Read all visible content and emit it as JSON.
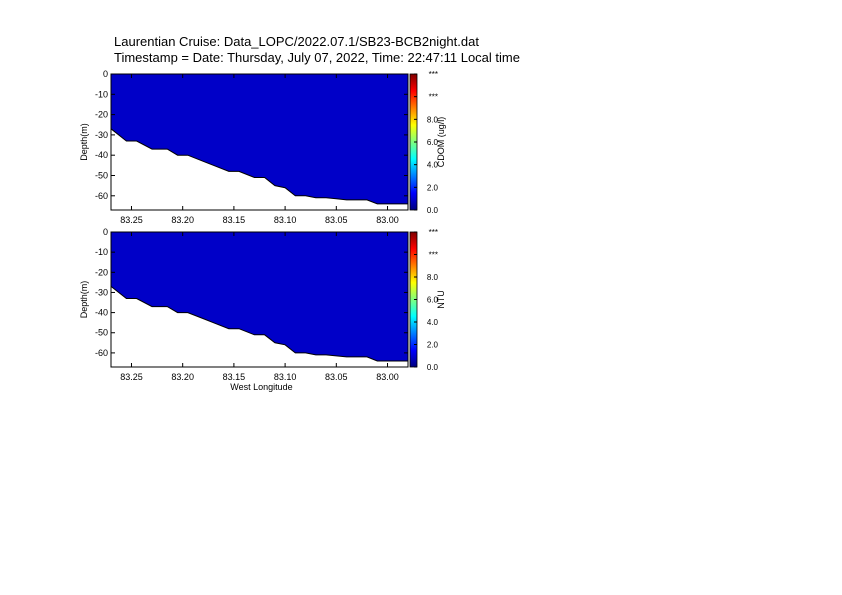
{
  "title_line1": "Laurentian Cruise: Data_LOPC/2022.07.1/SB23-BCB2night.dat",
  "title_line2": "Timestamp = Date: Thursday, July 07, 2022, Time: 22:47:11 Local time",
  "colors": {
    "fill": "#0000c8",
    "axis": "#000000"
  },
  "colorbar_colors": [
    "#00007f",
    "#0000ff",
    "#007fff",
    "#00ffff",
    "#7fff7f",
    "#ffff00",
    "#ff7f00",
    "#ff0000",
    "#7f0000"
  ],
  "chart_data": [
    {
      "type": "heatmap",
      "xlabel": "",
      "ylabel": "Depth(m)",
      "xlim": [
        83.27,
        82.98
      ],
      "ylim": [
        -67,
        0
      ],
      "x_ticks": [
        83.25,
        83.2,
        83.15,
        83.1,
        83.05,
        83.0
      ],
      "x_tick_labels": [
        "83.25",
        "83.20",
        "83.15",
        "83.10",
        "83.05",
        "83.00"
      ],
      "y_ticks": [
        0,
        -10,
        -20,
        -30,
        -40,
        -50,
        -60
      ],
      "y_tick_labels": [
        "0",
        "-10",
        "-20",
        "-30",
        "-40",
        "-50",
        "-60"
      ],
      "colorbar_label": "CDOM (ug/l)",
      "colorbar_ticks": [
        "0.0",
        "2.0",
        "4.0",
        "6.0",
        "8.0",
        "***",
        "***"
      ],
      "bottom_profile": {
        "lon": [
          83.27,
          83.255,
          83.245,
          83.23,
          83.215,
          83.205,
          83.195,
          83.18,
          83.17,
          83.155,
          83.145,
          83.13,
          83.12,
          83.11,
          83.1,
          83.09,
          83.08,
          83.07,
          83.06,
          83.05,
          83.04,
          83.02,
          83.01,
          83.0,
          82.98
        ],
        "depth": [
          -27,
          -33,
          -33,
          -37,
          -37,
          -40,
          -40,
          -43,
          -45,
          -48,
          -48,
          -51,
          -51,
          -55,
          -56,
          -60,
          -60,
          -61,
          -61,
          -61.5,
          -62,
          -62,
          -64,
          -64,
          -64
        ]
      }
    },
    {
      "type": "heatmap",
      "xlabel": "West Longitude",
      "ylabel": "Depth(m)",
      "xlim": [
        83.27,
        82.98
      ],
      "ylim": [
        -67,
        0
      ],
      "x_ticks": [
        83.25,
        83.2,
        83.15,
        83.1,
        83.05,
        83.0
      ],
      "x_tick_labels": [
        "83.25",
        "83.20",
        "83.15",
        "83.10",
        "83.05",
        "83.00"
      ],
      "y_ticks": [
        0,
        -10,
        -20,
        -30,
        -40,
        -50,
        -60
      ],
      "y_tick_labels": [
        "0",
        "-10",
        "-20",
        "-30",
        "-40",
        "-50",
        "-60"
      ],
      "colorbar_label": "NTU",
      "colorbar_ticks": [
        "0.0",
        "2.0",
        "4.0",
        "6.0",
        "8.0",
        "***",
        "***"
      ],
      "bottom_profile": {
        "lon": [
          83.27,
          83.255,
          83.245,
          83.23,
          83.215,
          83.205,
          83.195,
          83.18,
          83.17,
          83.155,
          83.145,
          83.13,
          83.12,
          83.11,
          83.1,
          83.09,
          83.08,
          83.07,
          83.06,
          83.05,
          83.04,
          83.02,
          83.01,
          83.0,
          82.98
        ],
        "depth": [
          -27,
          -33,
          -33,
          -37,
          -37,
          -40,
          -40,
          -43,
          -45,
          -48,
          -48,
          -51,
          -51,
          -55,
          -56,
          -60,
          -60,
          -61,
          -61,
          -61.5,
          -62,
          -62,
          -64,
          -64,
          -64
        ]
      }
    }
  ]
}
